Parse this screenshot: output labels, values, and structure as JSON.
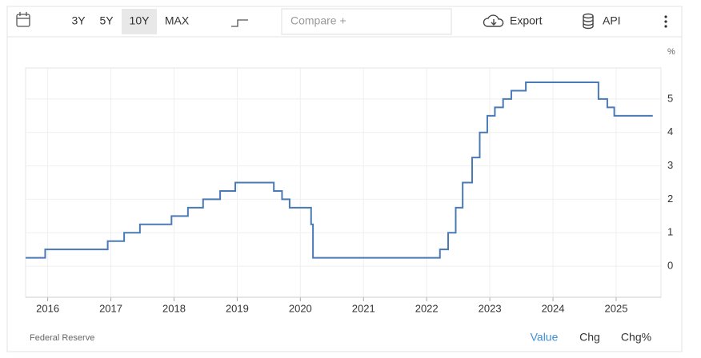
{
  "toolbar": {
    "ranges": [
      "3Y",
      "5Y",
      "10Y",
      "MAX"
    ],
    "active_range": "10Y",
    "compare": "Compare +",
    "export": "Export",
    "api": "API"
  },
  "chart_data": {
    "type": "line",
    "step": true,
    "color": "#4a7ab5",
    "y_unit": "%",
    "source": "Federal Reserve",
    "x": [
      2015.65,
      2015.96,
      2016.95,
      2017.21,
      2017.46,
      2017.96,
      2018.22,
      2018.46,
      2018.73,
      2018.97,
      2019.58,
      2019.71,
      2019.83,
      2020.17,
      2020.2,
      2022.21,
      2022.34,
      2022.46,
      2022.57,
      2022.72,
      2022.84,
      2022.96,
      2023.08,
      2023.21,
      2023.34,
      2023.57,
      2024.72,
      2024.86,
      2024.97,
      2025.58
    ],
    "values": [
      0.25,
      0.5,
      0.75,
      1.0,
      1.25,
      1.5,
      1.75,
      2.0,
      2.25,
      2.5,
      2.25,
      2.0,
      1.75,
      1.25,
      0.25,
      0.5,
      1.0,
      1.75,
      2.5,
      3.25,
      4.0,
      4.5,
      4.75,
      5.0,
      5.25,
      5.5,
      5.0,
      4.75,
      4.5,
      4.5
    ],
    "xlim": [
      2015.65,
      2025.71
    ],
    "xticks": [
      2016,
      2017,
      2018,
      2019,
      2020,
      2021,
      2022,
      2023,
      2024,
      2025
    ],
    "ylim": [
      -0.93,
      5.93
    ],
    "yticks": [
      0,
      1,
      2,
      3,
      4,
      5
    ],
    "grid": true,
    "views": [
      "Value",
      "Chg",
      "Chg%"
    ],
    "active_view": "Value"
  }
}
